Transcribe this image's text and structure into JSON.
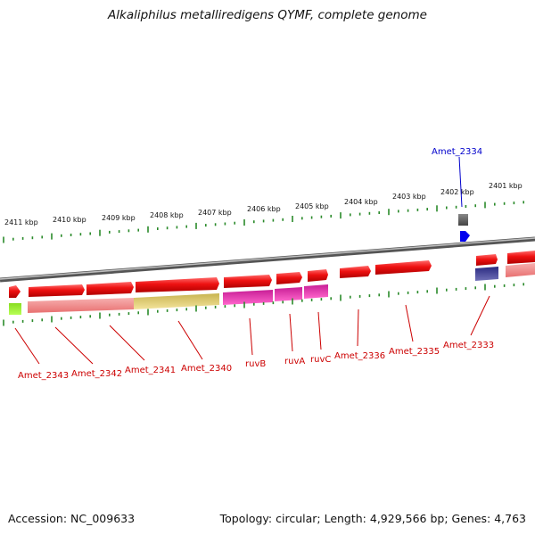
{
  "title": "Alkaliphilus metalliredigens QYMF, complete genome",
  "accession": "Accession: NC_009633",
  "topology": "Topology: circular; Length: 4,929,566 bp; Genes: 4,763",
  "colors": {
    "gene_forward": "#ee1111",
    "gene_reverse": "#ee1111",
    "backbone": "#888888",
    "tick": "#2a8a2a",
    "label_red": "#cc0000",
    "label_blue": "#0000cc",
    "cds_tag_blue": "#0000ee"
  },
  "kbp_labels": [
    "2411 kbp",
    "2410 kbp",
    "2409 kbp",
    "2408 kbp",
    "2407 kbp",
    "2406 kbp",
    "2405 kbp",
    "2404 kbp",
    "2403 kbp",
    "2402 kbp",
    "2401 kbp"
  ],
  "gene_labels": {
    "amet_2334": "Amet_2334",
    "amet_2343": "Amet_2343",
    "amet_2342": "Amet_2342",
    "amet_2341": "Amet_2341",
    "amet_2340": "Amet_2340",
    "ruvb": "ruvB",
    "ruva": "ruvA",
    "ruvc": "ruvC",
    "amet_2336": "Amet_2336",
    "amet_2335": "Amet_2335",
    "amet_2333": "Amet_2333"
  }
}
